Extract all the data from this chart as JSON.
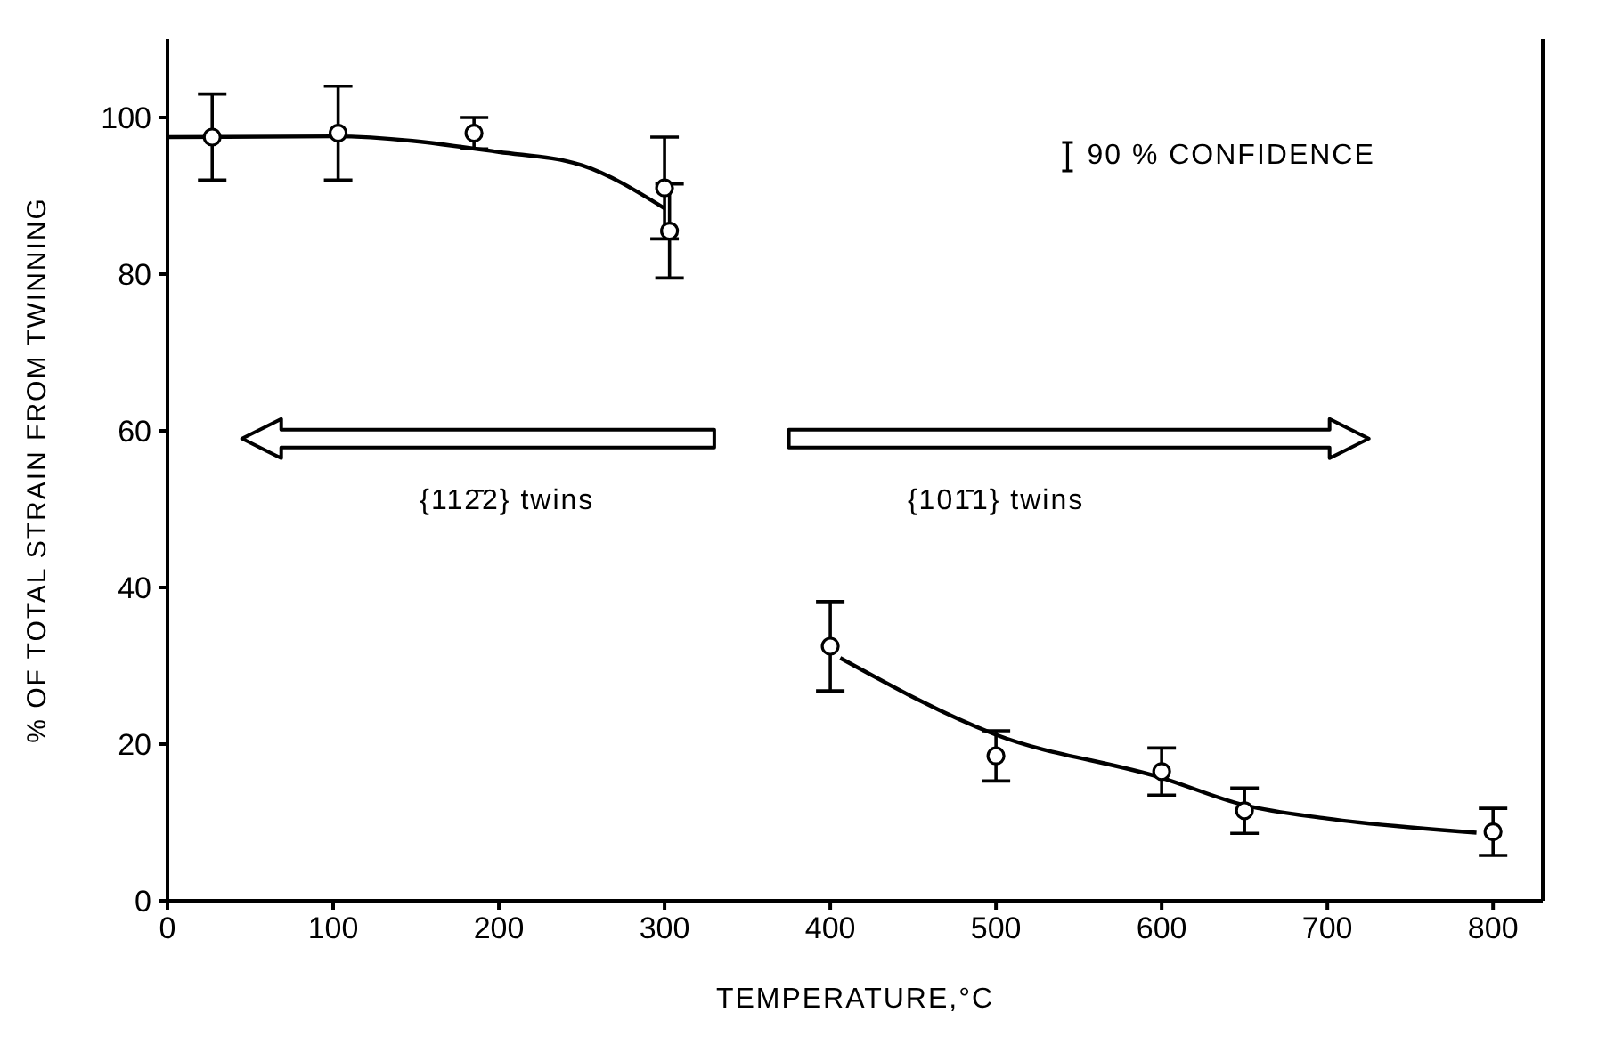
{
  "chart_data": {
    "type": "scatter",
    "xlabel": "TEMPERATURE,°C",
    "ylabel": "% OF TOTAL STRAIN FROM TWINNING",
    "xlim": [
      0,
      830
    ],
    "ylim": [
      0,
      110
    ],
    "xticks": [
      0,
      100,
      200,
      300,
      400,
      500,
      600,
      700,
      800
    ],
    "yticks": [
      0,
      20,
      40,
      60,
      80,
      100
    ],
    "grid": false,
    "legend": false,
    "marker": "circle",
    "annotations": [
      "90 % CONFIDENCE",
      "{112̄2} twins",
      "{101̄1} twins"
    ],
    "series": [
      {
        "color": "#000000",
        "x": [
          27,
          103,
          185,
          300,
          303,
          400,
          500,
          600,
          650,
          800
        ],
        "values": [
          97.5,
          98,
          98,
          91,
          85.5,
          32.5,
          18.5,
          16.5,
          11.5,
          8.8
        ],
        "errors": [
          5.5,
          6,
          2,
          6.5,
          6,
          5.7,
          3.2,
          3,
          2.9,
          3
        ]
      },
      {
        "type": "line",
        "color": "#000000",
        "marker": "none",
        "x": [
          0,
          100,
          200,
          250,
          300
        ],
        "values": [
          97.5,
          97.6,
          95.6,
          93.9,
          88.4
        ]
      },
      {
        "type": "line",
        "color": "#000000",
        "marker": "none",
        "x": [
          406,
          500,
          600,
          650,
          700,
          790
        ],
        "values": [
          31,
          21.2,
          15.7,
          12.2,
          10.5,
          8.7
        ]
      }
    ]
  }
}
